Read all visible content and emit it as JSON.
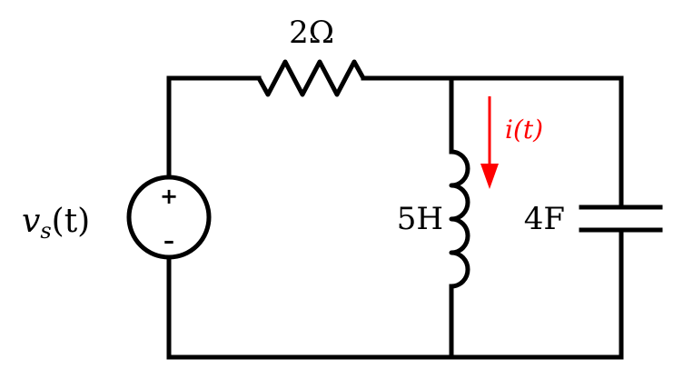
{
  "components": {
    "source": {
      "symbol": "v",
      "subscript": "s",
      "argument": "(t)",
      "plus": "+",
      "minus": "–"
    },
    "resistor": {
      "label": "2Ω"
    },
    "inductor": {
      "label": "5H"
    },
    "capacitor": {
      "label": "4F"
    },
    "current": {
      "label": "i(t)",
      "color": "#ff0000"
    }
  }
}
